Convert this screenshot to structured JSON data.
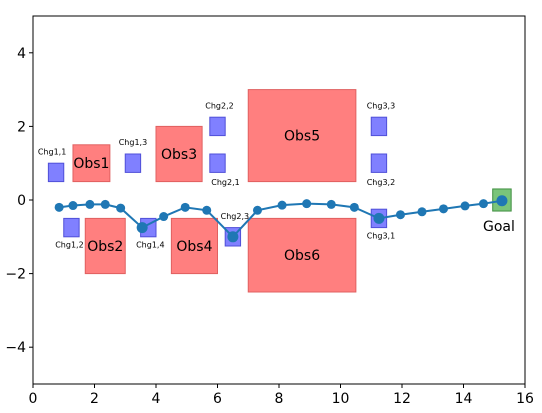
{
  "chart_data": {
    "type": "scatter",
    "title": "",
    "xlabel": "",
    "ylabel": "",
    "xlim": [
      0,
      16
    ],
    "ylim": [
      -5,
      5
    ],
    "xticks": [
      0,
      2,
      4,
      6,
      8,
      10,
      12,
      14,
      16
    ],
    "yticks": [
      -4,
      -2,
      0,
      2,
      4
    ],
    "grid": false,
    "colors": {
      "obstacle": "#ff7f7f",
      "obstacle_edge": "#e06060",
      "charger": "#8080ff",
      "charger_edge": "#4f4fd8",
      "goal": "#7ac47a",
      "goal_edge": "#3f8f3f",
      "path": "#1f77b4"
    },
    "obstacles": [
      {
        "label": "Obs1",
        "x0": 1.3,
        "x1": 2.5,
        "y0": 0.5,
        "y1": 1.5
      },
      {
        "label": "Obs2",
        "x0": 1.7,
        "x1": 3.0,
        "y0": -2.0,
        "y1": -0.5
      },
      {
        "label": "Obs3",
        "x0": 4.0,
        "x1": 5.5,
        "y0": 0.5,
        "y1": 2.0
      },
      {
        "label": "Obs4",
        "x0": 4.5,
        "x1": 6.0,
        "y0": -2.0,
        "y1": -0.5
      },
      {
        "label": "Obs5",
        "x0": 7.0,
        "x1": 10.5,
        "y0": 0.5,
        "y1": 3.0
      },
      {
        "label": "Obs6",
        "x0": 7.0,
        "x1": 10.5,
        "y0": -2.5,
        "y1": -0.5
      }
    ],
    "chargers": [
      {
        "label": "Chg1,1",
        "x": 0.75,
        "y": 0.75
      },
      {
        "label": "Chg1,2",
        "x": 1.25,
        "y": -0.75
      },
      {
        "label": "Chg1,3",
        "x": 3.25,
        "y": 1.0
      },
      {
        "label": "Chg1,4",
        "x": 3.75,
        "y": -0.75
      },
      {
        "label": "Chg2,1",
        "x": 6.0,
        "y": 1.0
      },
      {
        "label": "Chg2,2",
        "x": 6.0,
        "y": 2.0
      },
      {
        "label": "Chg2,3",
        "x": 6.5,
        "y": -1.0
      },
      {
        "label": "Chg3,1",
        "x": 11.25,
        "y": -0.5
      },
      {
        "label": "Chg3,2",
        "x": 11.25,
        "y": 1.0
      },
      {
        "label": "Chg3,3",
        "x": 11.25,
        "y": 2.0
      }
    ],
    "goal": {
      "label": "Goal",
      "x": 15.25,
      "y": 0.0
    },
    "path": {
      "x": [
        0.85,
        1.3,
        1.85,
        2.35,
        2.85,
        3.55,
        4.25,
        4.95,
        5.65,
        6.5,
        7.3,
        8.1,
        8.9,
        9.7,
        10.45,
        11.25,
        11.95,
        12.65,
        13.35,
        14.05,
        14.65,
        15.25
      ],
      "y": [
        -0.2,
        -0.15,
        -0.12,
        -0.12,
        -0.22,
        -0.75,
        -0.45,
        -0.2,
        -0.28,
        -1.0,
        -0.28,
        -0.14,
        -0.1,
        -0.12,
        -0.2,
        -0.5,
        -0.4,
        -0.32,
        -0.24,
        -0.16,
        -0.1,
        -0.02
      ]
    }
  }
}
